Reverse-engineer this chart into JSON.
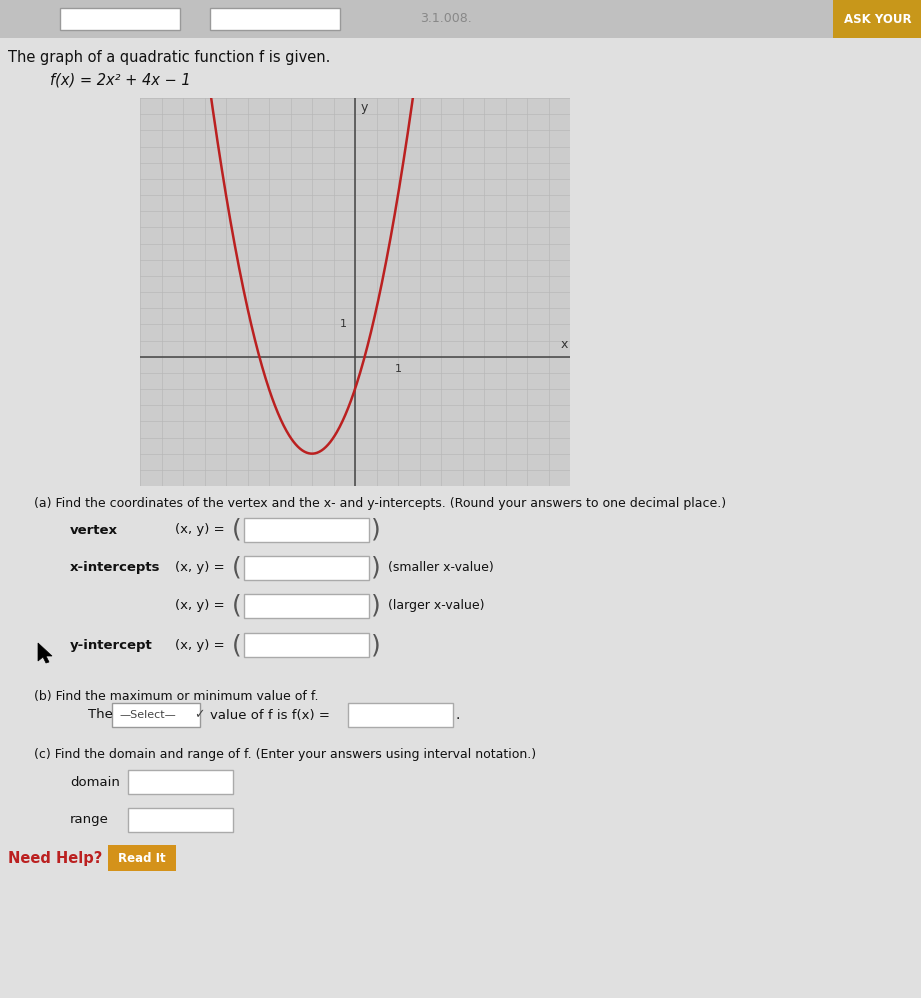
{
  "title_text": "The graph of a quadratic function f is given.",
  "func_label": "f(x) = 2x² + 4x − 1",
  "page_background": "#e0e0e0",
  "graph_bg": "#cccccc",
  "curve_color": "#bb2020",
  "axis_color": "#444444",
  "grid_color": "#b8b8b8",
  "grid_linewidth": 0.5,
  "curve_linewidth": 1.8,
  "x_range": [
    -5,
    5
  ],
  "y_range": [
    -4,
    8
  ],
  "part_a_text": "(a) Find the coordinates of the vertex and the x- and y-intercepts. (Round your answers to one decimal place.)",
  "part_b_text": "(b) Find the maximum or minimum value of f.",
  "part_c_text": "(c) Find the domain and range of f. (Enter your answers using interval notation.)",
  "input_box_color": "#ffffff",
  "input_box_edge": "#aaaaaa",
  "select_bg": "#ffffff",
  "select_edge": "#999999",
  "header_bg": "#c0c0c0",
  "ask_youi_bg": "#c8971a",
  "read_it_bg": "#d4921a",
  "need_help_color": "#bb2020"
}
